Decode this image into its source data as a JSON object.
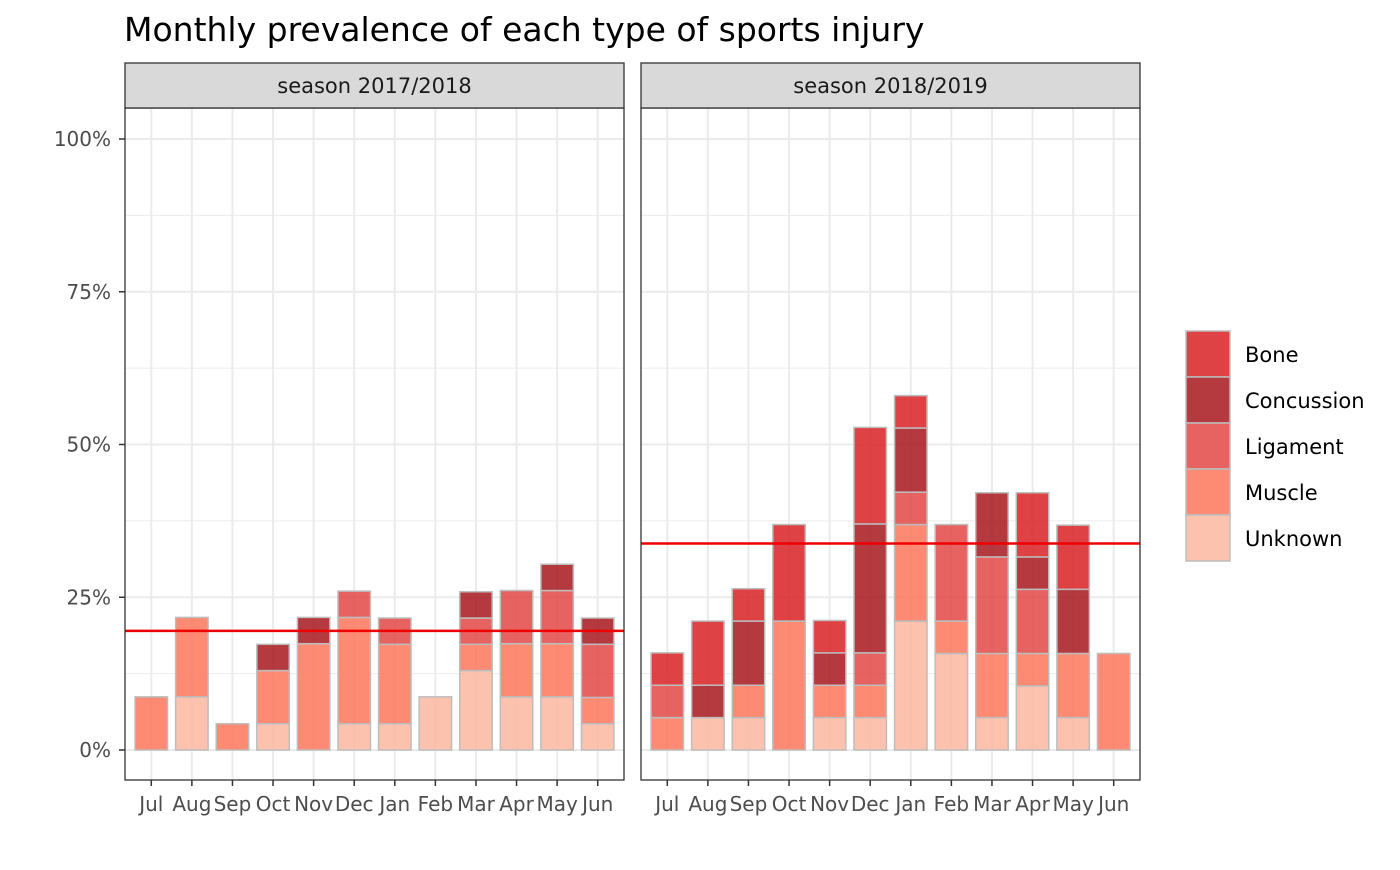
{
  "chart_data": {
    "type": "bar",
    "stacked": true,
    "title": "Monthly prevalence of each type of sports injury",
    "xlabel": "",
    "ylabel": "",
    "ylim": [
      0,
      1.05
    ],
    "y_ticks": [
      0,
      0.25,
      0.5,
      0.75,
      1.0
    ],
    "y_tick_labels": [
      "0%",
      "25%",
      "50%",
      "75%",
      "100%"
    ],
    "categories": [
      "Jul",
      "Aug",
      "Sep",
      "Oct",
      "Nov",
      "Dec",
      "Jan",
      "Feb",
      "Mar",
      "Apr",
      "May",
      "Jun"
    ],
    "stack_order": [
      "Unknown",
      "Muscle",
      "Ligament",
      "Concussion",
      "Bone"
    ],
    "legend": {
      "position": "right",
      "entries": [
        {
          "name": "Bone",
          "color": "#d7191c"
        },
        {
          "name": "Concussion",
          "color": "#a50f15"
        },
        {
          "name": "Ligament",
          "color": "#e0413f"
        },
        {
          "name": "Muscle",
          "color": "#fc7255"
        },
        {
          "name": "Unknown",
          "color": "#fcb49c"
        }
      ]
    },
    "colors": {
      "Bone": "#d7191c",
      "Concussion": "#a50f15",
      "Ligament": "#e0413f",
      "Muscle": "#fc7255",
      "Unknown": "#fcb49c",
      "bar_outline": "#bdbdbd",
      "reference_line": "#ee0000",
      "strip_fill": "#d9d9d9",
      "grid": "#ebebeb"
    },
    "grid": true,
    "panels": [
      {
        "strip": "season 2017/2018",
        "reference_line": 0.195,
        "series": [
          {
            "name": "Unknown",
            "values": [
              0,
              0.087,
              0,
              0.043,
              0,
              0.043,
              0.043,
              0.087,
              0.13,
              0.087,
              0.087,
              0.043
            ]
          },
          {
            "name": "Muscle",
            "values": [
              0.087,
              0.13,
              0.043,
              0.087,
              0.174,
              0.174,
              0.13,
              0,
              0.043,
              0.087,
              0.087,
              0.043
            ]
          },
          {
            "name": "Ligament",
            "values": [
              0,
              0,
              0,
              0,
              0,
              0.043,
              0.043,
              0,
              0.043,
              0.087,
              0.087,
              0.087
            ]
          },
          {
            "name": "Concussion",
            "values": [
              0,
              0,
              0,
              0.043,
              0.043,
              0,
              0,
              0,
              0.043,
              0,
              0.043,
              0.043
            ]
          },
          {
            "name": "Bone",
            "values": [
              0,
              0,
              0,
              0,
              0,
              0,
              0,
              0,
              0,
              0,
              0,
              0
            ]
          }
        ]
      },
      {
        "strip": "season 2018/2019",
        "reference_line": 0.338,
        "series": [
          {
            "name": "Unknown",
            "values": [
              0,
              0.053,
              0.053,
              0,
              0.053,
              0.053,
              0.211,
              0.158,
              0.053,
              0.105,
              0.053,
              0
            ]
          },
          {
            "name": "Muscle",
            "values": [
              0.053,
              0,
              0.053,
              0.211,
              0.053,
              0.053,
              0.158,
              0.053,
              0.105,
              0.053,
              0.105,
              0.158
            ]
          },
          {
            "name": "Ligament",
            "values": [
              0.053,
              0,
              0,
              0,
              0,
              0.053,
              0.053,
              0.158,
              0.158,
              0.105,
              0,
              0
            ]
          },
          {
            "name": "Concussion",
            "values": [
              0,
              0.053,
              0.105,
              0,
              0.053,
              0.211,
              0.105,
              0,
              0.105,
              0.053,
              0.105,
              0
            ]
          },
          {
            "name": "Bone",
            "values": [
              0.053,
              0.105,
              0.053,
              0.158,
              0.053,
              0.158,
              0.053,
              0,
              0,
              0.105,
              0.105,
              0
            ]
          }
        ]
      }
    ]
  }
}
